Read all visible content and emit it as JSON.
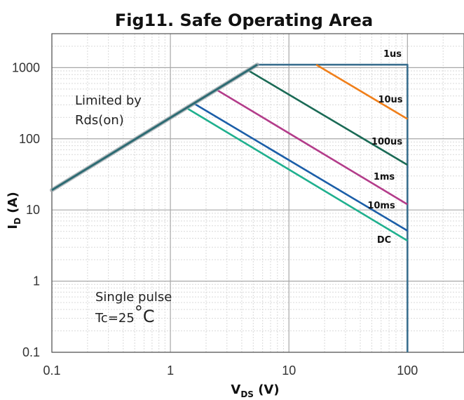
{
  "chart_data": {
    "type": "line",
    "title": "Fig11. Safe Operating Area",
    "xlabel": {
      "main": "V",
      "sub": "DS",
      "unit": " (V)"
    },
    "ylabel": {
      "main": "I",
      "sub": "D",
      "unit": " (A)"
    },
    "x_scale": "log",
    "y_scale": "log",
    "xlim": [
      0.1,
      300
    ],
    "ylim": [
      0.1,
      3000
    ],
    "x_ticks": [
      0.1,
      1,
      10,
      100
    ],
    "x_tick_labels": [
      "0.1",
      "1",
      "10",
      "100"
    ],
    "y_ticks": [
      0.1,
      1,
      10,
      100,
      1000
    ],
    "y_tick_labels": [
      "0.1",
      "1",
      "10",
      "100",
      "1000"
    ],
    "grid": true,
    "annotations": {
      "rds_line1": "Limited by",
      "rds_line2": "Rds(on)",
      "pulse_line1": "Single pulse",
      "pulse_line2": "Tc=25",
      "pulse_degree": "°",
      "pulse_unit": "C"
    },
    "series": [
      {
        "name": "1us",
        "color": "#3a6f8f",
        "points": [
          [
            5.4,
            1100
          ],
          [
            100,
            1100
          ],
          [
            100,
            0.1
          ]
        ]
      },
      {
        "name": "10us",
        "color": "#f07f1a",
        "points": [
          [
            17,
            1100
          ],
          [
            100,
            190
          ]
        ]
      },
      {
        "name": "100us",
        "color": "#1a6a55",
        "points": [
          [
            4.6,
            900
          ],
          [
            100,
            43
          ]
        ]
      },
      {
        "name": "1ms",
        "color": "#b33c8a",
        "points": [
          [
            2.5,
            480
          ],
          [
            100,
            12
          ]
        ]
      },
      {
        "name": "10ms",
        "color": "#1b5ea8",
        "points": [
          [
            1.6,
            310
          ],
          [
            100,
            5.1
          ]
        ]
      },
      {
        "name": "DC",
        "color": "#1fb08e",
        "points": [
          [
            1.4,
            265
          ],
          [
            100,
            3.7
          ]
        ]
      },
      {
        "name": "Limited by Rds(on)",
        "color": "#2d6b73",
        "points": [
          [
            0.1,
            19
          ],
          [
            5.4,
            1100
          ]
        ]
      }
    ]
  }
}
